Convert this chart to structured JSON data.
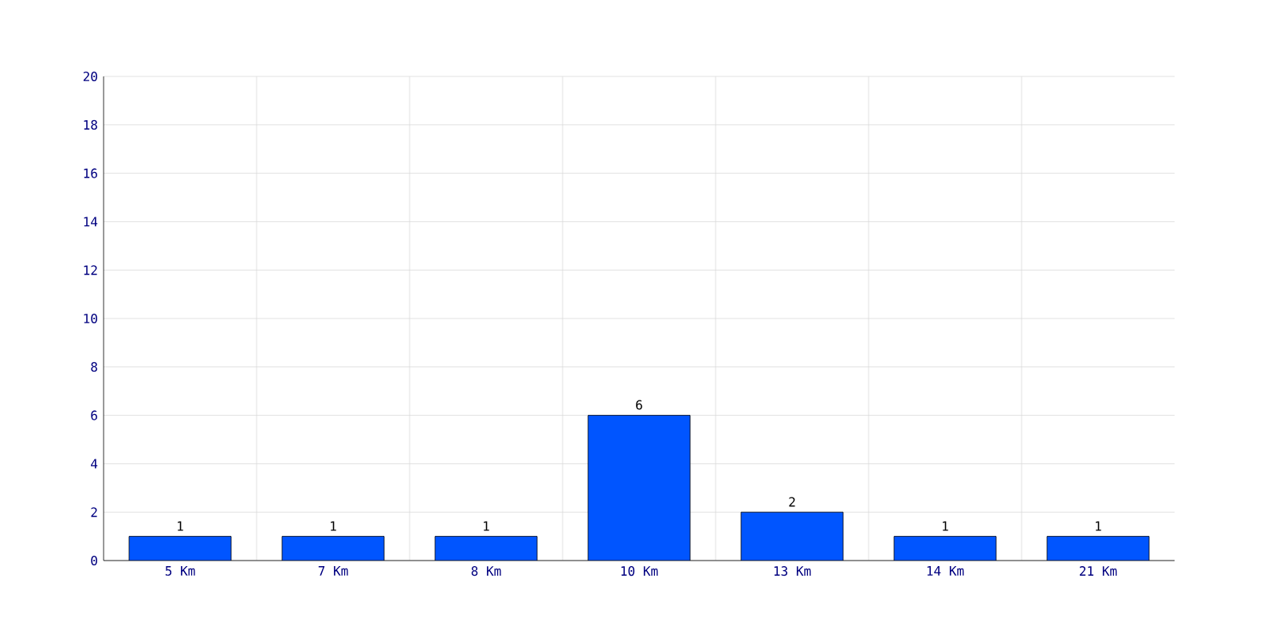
{
  "chart_data": {
    "type": "bar",
    "categories": [
      "5 Km",
      "7 Km",
      "8 Km",
      "10 Km",
      "13 Km",
      "14 Km",
      "21 Km"
    ],
    "values": [
      1,
      1,
      1,
      6,
      2,
      1,
      1
    ],
    "color": "#0055ff",
    "ylim": [
      0,
      20
    ],
    "yticks": [
      0,
      2,
      4,
      6,
      8,
      10,
      12,
      14,
      16,
      18,
      20
    ],
    "grid": true,
    "data_labels": true
  }
}
